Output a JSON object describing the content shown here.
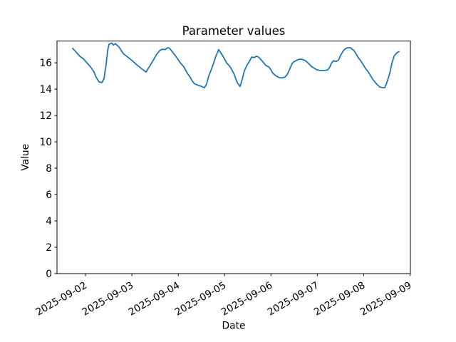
{
  "chart_data": {
    "type": "line",
    "title": "Parameter values",
    "xlabel": "Date",
    "ylabel": "Value",
    "x_tick_labels": [
      "2025-09-02",
      "2025-09-03",
      "2025-09-04",
      "2025-09-05",
      "2025-09-06",
      "2025-09-07",
      "2025-09-08",
      "2025-09-09"
    ],
    "x_ticks_day_offset": [
      1,
      2,
      3,
      4,
      5,
      6,
      7,
      8
    ],
    "x_unit": "days since 2025-09-01 00:00",
    "y_tick_labels": [
      "0",
      "2",
      "4",
      "6",
      "8",
      "10",
      "12",
      "14",
      "16"
    ],
    "y_ticks": [
      0,
      2,
      4,
      6,
      8,
      10,
      12,
      14,
      16
    ],
    "xlim": [
      0.385,
      8.008
    ],
    "ylim": [
      0,
      17.65
    ],
    "grid": false,
    "legend": false,
    "colors": {
      "line": "#1f77b4",
      "background": "#ffffff",
      "text": "#000000",
      "spine": "#000000"
    },
    "series": [
      {
        "name": "Parameter",
        "color": "#1f77b4",
        "points": [
          [
            0.723,
            17.1
          ],
          [
            0.8,
            16.8
          ],
          [
            0.877,
            16.5
          ],
          [
            0.954,
            16.3
          ],
          [
            1.031,
            16.0
          ],
          [
            1.108,
            15.7
          ],
          [
            1.184,
            15.3
          ],
          [
            1.231,
            14.9
          ],
          [
            1.292,
            14.55
          ],
          [
            1.353,
            14.5
          ],
          [
            1.4,
            14.8
          ],
          [
            1.446,
            15.9
          ],
          [
            1.476,
            16.9
          ],
          [
            1.507,
            17.4
          ],
          [
            1.569,
            17.5
          ],
          [
            1.599,
            17.35
          ],
          [
            1.645,
            17.45
          ],
          [
            1.722,
            17.2
          ],
          [
            1.815,
            16.7
          ],
          [
            1.922,
            16.4
          ],
          [
            2.03,
            16.1
          ],
          [
            2.122,
            15.8
          ],
          [
            2.229,
            15.5
          ],
          [
            2.306,
            15.3
          ],
          [
            2.429,
            16.0
          ],
          [
            2.537,
            16.65
          ],
          [
            2.614,
            16.97
          ],
          [
            2.66,
            17.03
          ],
          [
            2.721,
            17.0
          ],
          [
            2.767,
            17.14
          ],
          [
            2.813,
            17.1
          ],
          [
            2.89,
            16.76
          ],
          [
            2.967,
            16.4
          ],
          [
            3.044,
            16.0
          ],
          [
            3.121,
            15.7
          ],
          [
            3.198,
            15.2
          ],
          [
            3.259,
            14.9
          ],
          [
            3.305,
            14.6
          ],
          [
            3.351,
            14.4
          ],
          [
            3.428,
            14.3
          ],
          [
            3.505,
            14.2
          ],
          [
            3.567,
            14.1
          ],
          [
            3.613,
            14.4
          ],
          [
            3.659,
            15.0
          ],
          [
            3.72,
            15.55
          ],
          [
            3.766,
            16.0
          ],
          [
            3.813,
            16.5
          ],
          [
            3.874,
            17.0
          ],
          [
            3.966,
            16.5
          ],
          [
            4.043,
            16.0
          ],
          [
            4.12,
            15.7
          ],
          [
            4.197,
            15.2
          ],
          [
            4.274,
            14.5
          ],
          [
            4.335,
            14.2
          ],
          [
            4.381,
            14.75
          ],
          [
            4.427,
            15.4
          ],
          [
            4.489,
            15.85
          ],
          [
            4.535,
            16.1
          ],
          [
            4.581,
            16.43
          ],
          [
            4.642,
            16.4
          ],
          [
            4.688,
            16.5
          ],
          [
            4.734,
            16.43
          ],
          [
            4.796,
            16.2
          ],
          [
            4.842,
            16.0
          ],
          [
            4.888,
            15.8
          ],
          [
            4.949,
            15.7
          ],
          [
            4.995,
            15.5
          ],
          [
            5.042,
            15.2
          ],
          [
            5.103,
            15.03
          ],
          [
            5.149,
            14.92
          ],
          [
            5.195,
            14.86
          ],
          [
            5.257,
            14.86
          ],
          [
            5.303,
            14.92
          ],
          [
            5.349,
            15.1
          ],
          [
            5.41,
            15.57
          ],
          [
            5.457,
            15.95
          ],
          [
            5.503,
            16.1
          ],
          [
            5.564,
            16.2
          ],
          [
            5.61,
            16.27
          ],
          [
            5.656,
            16.27
          ],
          [
            5.718,
            16.2
          ],
          [
            5.764,
            16.1
          ],
          [
            5.81,
            15.95
          ],
          [
            5.871,
            15.73
          ],
          [
            5.918,
            15.62
          ],
          [
            5.994,
            15.46
          ],
          [
            6.071,
            15.41
          ],
          [
            6.148,
            15.41
          ],
          [
            6.225,
            15.46
          ],
          [
            6.271,
            15.68
          ],
          [
            6.302,
            15.95
          ],
          [
            6.348,
            16.16
          ],
          [
            6.409,
            16.1
          ],
          [
            6.455,
            16.2
          ],
          [
            6.501,
            16.54
          ],
          [
            6.563,
            16.92
          ],
          [
            6.609,
            17.08
          ],
          [
            6.655,
            17.14
          ],
          [
            6.717,
            17.14
          ],
          [
            6.763,
            17.0
          ],
          [
            6.793,
            16.92
          ],
          [
            6.84,
            16.65
          ],
          [
            6.886,
            16.38
          ],
          [
            6.947,
            16.1
          ],
          [
            6.993,
            15.84
          ],
          [
            7.039,
            15.57
          ],
          [
            7.101,
            15.3
          ],
          [
            7.147,
            15.03
          ],
          [
            7.193,
            14.76
          ],
          [
            7.254,
            14.49
          ],
          [
            7.3,
            14.32
          ],
          [
            7.347,
            14.16
          ],
          [
            7.408,
            14.11
          ],
          [
            7.454,
            14.11
          ],
          [
            7.5,
            14.49
          ],
          [
            7.562,
            15.2
          ],
          [
            7.608,
            15.95
          ],
          [
            7.654,
            16.49
          ],
          [
            7.715,
            16.76
          ],
          [
            7.762,
            16.85
          ]
        ]
      }
    ]
  }
}
